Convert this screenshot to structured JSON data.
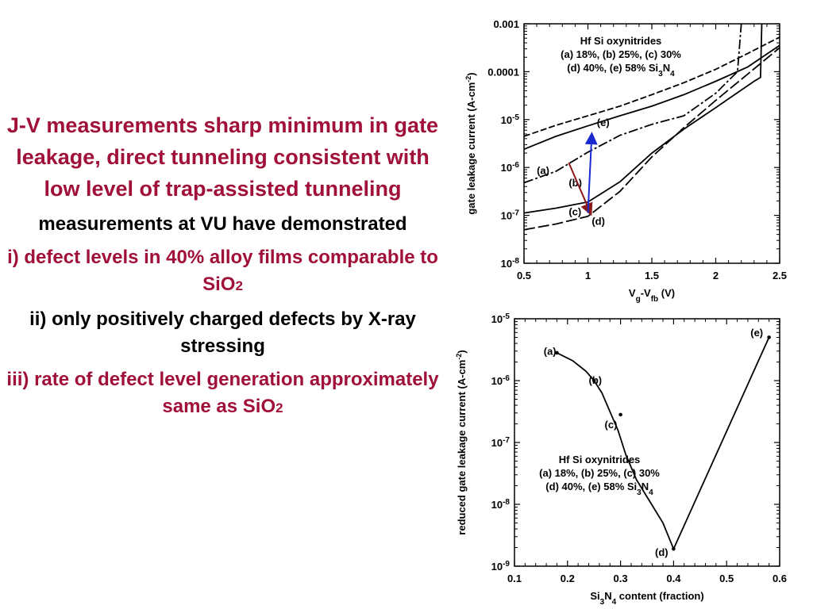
{
  "slide": {
    "heading": "J-V measurements sharp minimum in gate leakage, direct tunneling consistent with low level of trap-assisted tunneling",
    "intro": "measurements at VU have demonstrated",
    "item1_text": "i) defect levels in 40% alloy films comparable to SiO",
    "item1_sub": "2",
    "item2": "ii) only positively charged defects by X-ray stressing",
    "item3_text": "iii) rate of defect level generation approximately same as SiO",
    "item3_sub": "2"
  },
  "colors": {
    "accent_red": "#a01038",
    "arrow_red": "#8b1a1a",
    "arrow_blue": "#1a2ad0",
    "text": "#000000"
  },
  "chart_data": [
    {
      "type": "line",
      "x_log": false,
      "y_log": true,
      "xlim": [
        0.5,
        2.5
      ],
      "ylim_exp": [
        -8,
        -3
      ],
      "xticks": [
        "0.5",
        "1",
        "1.5",
        "2",
        "2.5"
      ],
      "xtick_values": [
        0.5,
        1,
        1.5,
        2,
        2.5
      ],
      "yticks": [
        {
          "exp": -3,
          "label": "0.001",
          "base": "",
          "sup": ""
        },
        {
          "exp": -4,
          "label": "0.0001",
          "base": "",
          "sup": ""
        },
        {
          "exp": -5,
          "label": "",
          "base": "10",
          "sup": "-5"
        },
        {
          "exp": -6,
          "label": "",
          "base": "10",
          "sup": "-6"
        },
        {
          "exp": -7,
          "label": "",
          "base": "10",
          "sup": "-7"
        },
        {
          "exp": -8,
          "label": "",
          "base": "10",
          "sup": "-8"
        }
      ],
      "xlabel": {
        "a": "V",
        "a_sub": "g",
        "b": "-V",
        "b_sub": "fb",
        "c": " (V)"
      },
      "ylabel": {
        "text": "gate leakage current (A-cm",
        "sup": "-2",
        "end": ")"
      },
      "annotation": {
        "line1": "Hf Si oxynitrides",
        "line2": "(a) 18%, (b) 25%, (c) 30%",
        "line3_a": "(d) 40%, (e) 58% Si",
        "line3_sub1": "3",
        "line3_b": "N",
        "line3_sub2": "4"
      },
      "series": [
        {
          "label": "(a)",
          "dash": "8,3",
          "x": [
            0.5,
            0.75,
            1.0,
            1.25,
            1.5,
            1.75,
            2.0,
            2.25,
            2.5
          ],
          "y_exp": [
            -5.35,
            -5.12,
            -4.92,
            -4.72,
            -4.48,
            -4.23,
            -3.95,
            -3.62,
            -3.28
          ]
        },
        {
          "label": "(b)",
          "dash": "",
          "x": [
            0.5,
            0.75,
            1.0,
            1.25,
            1.5,
            1.75,
            2.0,
            2.25,
            2.5
          ],
          "y_exp": [
            -5.62,
            -5.35,
            -5.13,
            -4.92,
            -4.72,
            -4.48,
            -4.2,
            -3.9,
            -3.45
          ]
        },
        {
          "label": "(c)",
          "dash": "12,3,3,3",
          "x": [
            0.5,
            0.75,
            1.0,
            1.25,
            1.5,
            1.75,
            2.0,
            2.17,
            2.2
          ],
          "y_exp": [
            -6.32,
            -6.08,
            -5.68,
            -5.33,
            -5.1,
            -4.92,
            -4.45,
            -4.0,
            -3.0
          ]
        },
        {
          "label": "(d)",
          "dash": "",
          "x": [
            0.5,
            0.75,
            1.0,
            1.25,
            1.5,
            1.75,
            2.0,
            2.3,
            2.35,
            2.36
          ],
          "y_exp": [
            -6.95,
            -6.85,
            -6.72,
            -6.3,
            -5.7,
            -5.2,
            -4.75,
            -4.2,
            -4.12,
            -3.0
          ]
        },
        {
          "label": "(e)",
          "dash": "14,4",
          "x": [
            0.5,
            0.75,
            1.0,
            1.25,
            1.5,
            1.75,
            2.0,
            2.25,
            2.5
          ],
          "y_exp": [
            -7.3,
            -7.18,
            -7.02,
            -6.5,
            -5.78,
            -5.17,
            -4.6,
            -4.05,
            -3.5
          ]
        }
      ],
      "labels": [
        {
          "text": "(a)",
          "x": 0.6,
          "y_exp": -6.07
        },
        {
          "text": "(b)",
          "x": 0.85,
          "y_exp": -6.33
        },
        {
          "text": "(c)",
          "x": 0.85,
          "y_exp": -6.93
        },
        {
          "text": "(d)",
          "x": 1.03,
          "y_exp": -7.13
        },
        {
          "text": "(e)",
          "x": 1.07,
          "y_exp": -5.07
        }
      ],
      "arrows": [
        {
          "color": "red",
          "from": [
            0.85,
            -5.9
          ],
          "to": [
            1.02,
            -6.95
          ]
        },
        {
          "color": "blue",
          "from": [
            1.0,
            -6.95
          ],
          "to": [
            1.03,
            -5.32
          ]
        }
      ]
    },
    {
      "type": "line",
      "x_log": false,
      "y_log": true,
      "xlim": [
        0.1,
        0.6
      ],
      "ylim_exp": [
        -9,
        -5
      ],
      "xticks": [
        "0.1",
        "0.2",
        "0.3",
        "0.4",
        "0.5",
        "0.6"
      ],
      "xtick_values": [
        0.1,
        0.2,
        0.3,
        0.4,
        0.5,
        0.6
      ],
      "yticks": [
        {
          "exp": -5,
          "label": "",
          "base": "10",
          "sup": "-5"
        },
        {
          "exp": -6,
          "label": "",
          "base": "10",
          "sup": "-6"
        },
        {
          "exp": -7,
          "label": "",
          "base": "10",
          "sup": "-7"
        },
        {
          "exp": -8,
          "label": "",
          "base": "10",
          "sup": "-8"
        },
        {
          "exp": -9,
          "label": "",
          "base": "10",
          "sup": "-9"
        }
      ],
      "xlabel": {
        "a": "Si",
        "a_sub": "3",
        "b": "N",
        "b_sub": "4",
        "c": " content (fraction)"
      },
      "ylabel": {
        "text": "reduced gate leakage current (A-cm",
        "sup": "-2",
        "end": ")"
      },
      "annotation": {
        "line1": "Hf Si oxynitrides",
        "line2": "(a) 18%, (b) 25%, (c) 30%",
        "line3_a": "(d) 40%, (e) 58% Si",
        "line3_sub1": "3",
        "line3_b": "N",
        "line3_sub2": "4"
      },
      "series": [
        {
          "label": "reduced leakage",
          "dash": "",
          "x": [
            0.18,
            0.21,
            0.235,
            0.25,
            0.265,
            0.28,
            0.295,
            0.31,
            0.33,
            0.355,
            0.38,
            0.4,
            0.58
          ],
          "y_exp": [
            -5.55,
            -5.68,
            -5.85,
            -6.0,
            -6.2,
            -6.5,
            -6.8,
            -7.2,
            -7.6,
            -7.95,
            -8.3,
            -8.72,
            -5.3
          ]
        }
      ],
      "points": [
        {
          "x": 0.18,
          "y_exp": -5.55
        },
        {
          "x": 0.25,
          "y_exp": -6.0
        },
        {
          "x": 0.3,
          "y_exp": -6.55
        },
        {
          "x": 0.4,
          "y_exp": -8.72
        },
        {
          "x": 0.58,
          "y_exp": -5.3
        }
      ],
      "labels": [
        {
          "text": "(a)",
          "x": 0.155,
          "y_exp": -5.53
        },
        {
          "text": "(b)",
          "x": 0.24,
          "y_exp": -6.0
        },
        {
          "text": "(c)",
          "x": 0.27,
          "y_exp": -6.72
        },
        {
          "text": "(d)",
          "x": 0.365,
          "y_exp": -8.78
        },
        {
          "text": "(e)",
          "x": 0.545,
          "y_exp": -5.23
        }
      ]
    }
  ]
}
